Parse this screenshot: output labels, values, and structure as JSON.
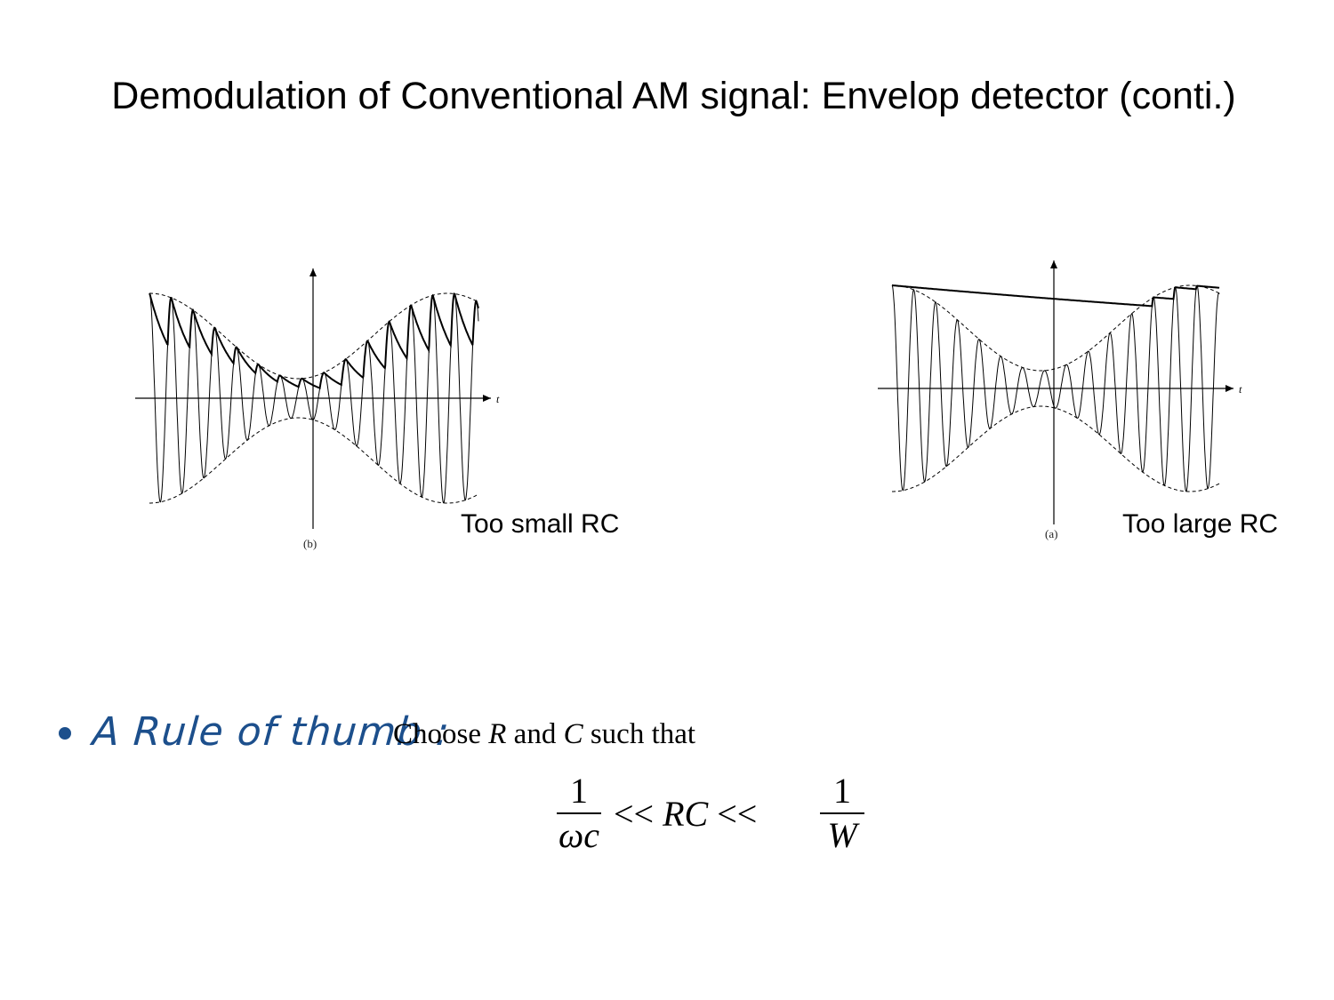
{
  "slide": {
    "title": "Demodulation of Conventional AM signal: Envelop detector (conti.)",
    "left_figure": {
      "tag": "(b)",
      "axis_label": "t",
      "caption": "Too small RC"
    },
    "right_figure": {
      "tag": "(a)",
      "axis_label": "t",
      "caption": "Too large RC"
    },
    "rule": {
      "handwritten_label": "A Rule of thumb :",
      "text_prefix": "Choose ",
      "var_r": "R",
      "text_mid": " and ",
      "var_c": "C",
      "text_suffix": " such that"
    },
    "formula": {
      "left_numerator": "1",
      "left_denominator": "ωc",
      "relation_1": "<<",
      "middle": "RC",
      "relation_2": "<<",
      "right_numerator": "1",
      "right_denominator": "W"
    },
    "colors": {
      "ink": "#000000",
      "handwriting": "#1c4f8c"
    }
  }
}
